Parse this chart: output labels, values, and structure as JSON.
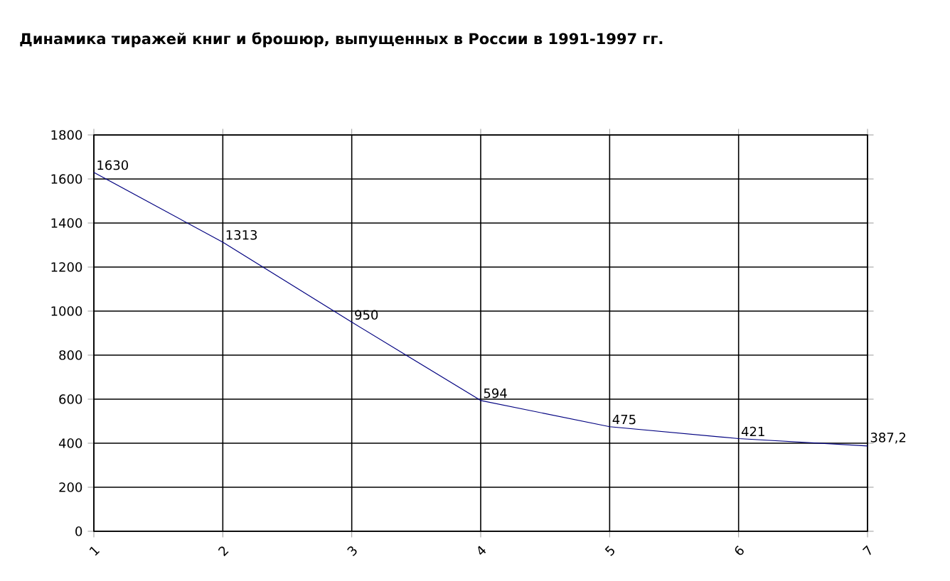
{
  "chart_data": {
    "type": "line",
    "title": "Динамика тиражей книг и брошюр, выпущенных в России в 1991-1997 гг.",
    "x": [
      1,
      2,
      3,
      4,
      5,
      6,
      7
    ],
    "series": [
      {
        "color": "#000080",
        "values": [
          1630,
          1313,
          950,
          594,
          475,
          421,
          387.2
        ],
        "value_labels": [
          "1630",
          "1313",
          "950",
          "594",
          "475",
          "421",
          "387,2"
        ]
      }
    ],
    "xlim": [
      1,
      7
    ],
    "xticks": [
      1,
      2,
      3,
      4,
      5,
      6,
      7
    ],
    "ylim": [
      0,
      1800
    ],
    "yticks": [
      0,
      200,
      400,
      600,
      800,
      1000,
      1200,
      1400,
      1600,
      1800
    ],
    "grid": true,
    "marker": "none",
    "line_style": "solid"
  }
}
